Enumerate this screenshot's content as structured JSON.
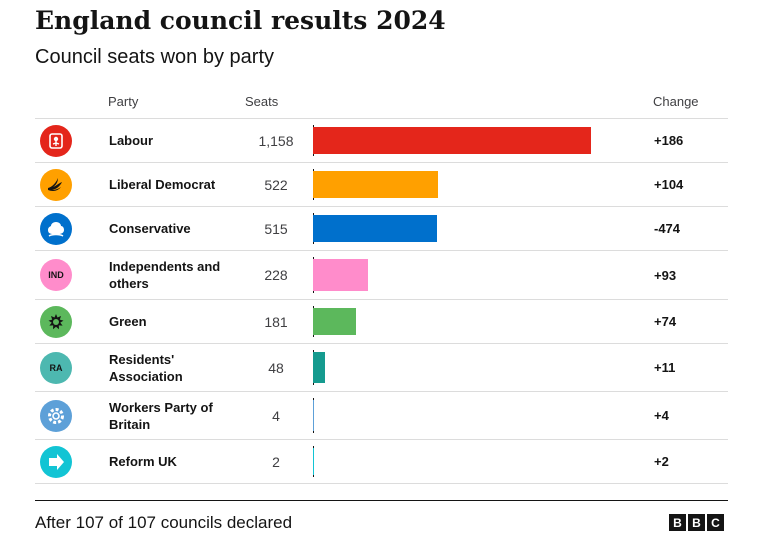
{
  "title": "England council results 2024",
  "subtitle": "Council seats won by party",
  "columns": {
    "party": "Party",
    "seats": "Seats",
    "change": "Change"
  },
  "footer": "After 107 of 107 councils declared",
  "brand": [
    "B",
    "B",
    "C"
  ],
  "chart_data": {
    "type": "bar",
    "orientation": "horizontal",
    "categories": [
      "Labour",
      "Liberal Democrat",
      "Conservative",
      "Independents and others",
      "Green",
      "Residents' Association",
      "Workers Party of Britain",
      "Reform UK"
    ],
    "values": [
      1158,
      522,
      515,
      228,
      181,
      48,
      4,
      2
    ],
    "value_labels": [
      "1,158",
      "522",
      "515",
      "228",
      "181",
      "48",
      "4",
      "2"
    ],
    "change": [
      "+186",
      "+104",
      "-474",
      "+93",
      "+74",
      "+11",
      "+4",
      "+2"
    ],
    "colors": [
      "#E4261B",
      "#FFA000",
      "#0070CC",
      "#FF8CCB",
      "#5CB85C",
      "#159B8F",
      "#5DA0D8",
      "#12C4D4"
    ],
    "icons": [
      "labour-rose-icon",
      "libdem-bird-icon",
      "conservative-tree-icon",
      "ind-badge-icon",
      "green-logo-icon",
      "ra-badge-icon",
      "workers-cog-icon",
      "reform-arrow-icon"
    ],
    "icon_text": [
      "",
      "",
      "",
      "IND",
      "",
      "RA",
      "",
      ""
    ],
    "xlim": [
      0,
      1200
    ],
    "title": "England council results 2024",
    "subtitle": "Council seats won by party"
  }
}
